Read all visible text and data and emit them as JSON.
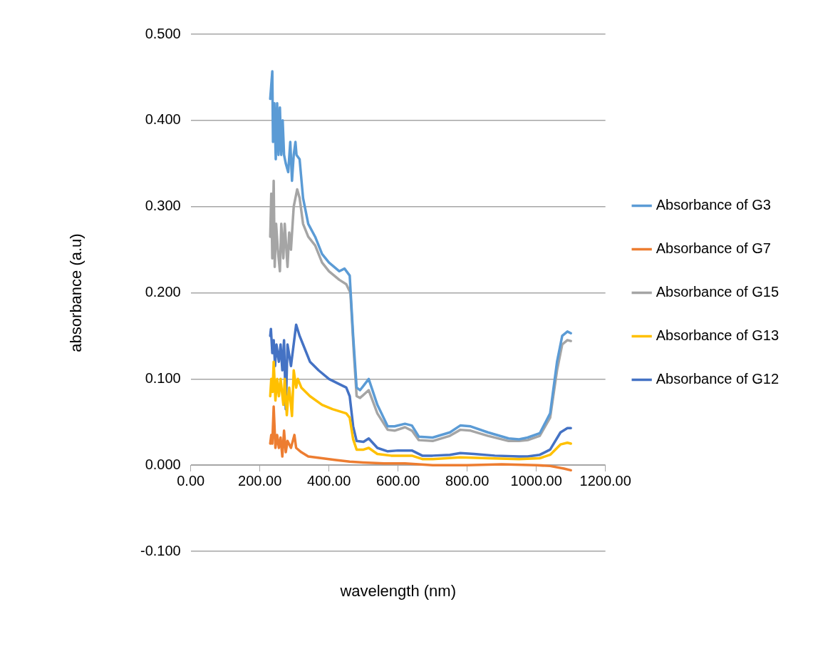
{
  "chart_data": {
    "type": "line",
    "xlabel": "wavelength (nm)",
    "ylabel": "absorbance (a.u)",
    "xlim": [
      0,
      1200
    ],
    "xticks": [
      {
        "value": 0,
        "label": "0.00"
      },
      {
        "value": 200,
        "label": "200.00"
      },
      {
        "value": 400,
        "label": "400.00"
      },
      {
        "value": 600,
        "label": "600.00"
      },
      {
        "value": 800,
        "label": "800.00"
      },
      {
        "value": 1000,
        "label": "1000.00"
      },
      {
        "value": 1200,
        "label": "1200.00"
      }
    ],
    "ylim": [
      -0.1,
      0.5
    ],
    "yticks": [
      {
        "value": -0.1,
        "label": "-0.100"
      },
      {
        "value": 0,
        "label": "0.000"
      },
      {
        "value": 0.1,
        "label": "0.100"
      },
      {
        "value": 0.2,
        "label": "0.200"
      },
      {
        "value": 0.3,
        "label": "0.300"
      },
      {
        "value": 0.4,
        "label": "0.400"
      },
      {
        "value": 0.5,
        "label": "0.500"
      }
    ],
    "grid": "y",
    "legend": "right",
    "marker": "none",
    "line_style": "solid",
    "series": [
      {
        "name": "Absorbance of G3",
        "color": "#5b9bd5",
        "x": [
          230,
          236,
          238,
          242,
          246,
          250,
          254,
          258,
          262,
          266,
          270,
          275,
          282,
          288,
          293,
          298,
          303,
          306,
          315,
          325,
          340,
          360,
          380,
          400,
          430,
          445,
          460,
          470,
          480,
          490,
          515,
          540,
          570,
          590,
          620,
          640,
          660,
          700,
          750,
          780,
          810,
          860,
          920,
          950,
          975,
          1010,
          1040,
          1060,
          1075,
          1090,
          1100
        ],
        "values": [
          0.425,
          0.457,
          0.375,
          0.42,
          0.355,
          0.42,
          0.36,
          0.415,
          0.36,
          0.4,
          0.36,
          0.35,
          0.34,
          0.375,
          0.33,
          0.36,
          0.375,
          0.36,
          0.355,
          0.31,
          0.28,
          0.265,
          0.245,
          0.235,
          0.225,
          0.228,
          0.22,
          0.15,
          0.09,
          0.087,
          0.1,
          0.07,
          0.045,
          0.045,
          0.048,
          0.046,
          0.033,
          0.032,
          0.038,
          0.046,
          0.045,
          0.038,
          0.031,
          0.03,
          0.032,
          0.037,
          0.06,
          0.12,
          0.15,
          0.155,
          0.153
        ]
      },
      {
        "name": "Absorbance of G7",
        "color": "#ed7d31",
        "x": [
          230,
          233,
          236,
          240,
          245,
          250,
          255,
          260,
          265,
          270,
          275,
          280,
          290,
          300,
          305,
          320,
          340,
          380,
          420,
          460,
          500,
          560,
          620,
          660,
          700,
          800,
          900,
          1000,
          1040,
          1080,
          1100
        ],
        "values": [
          0.025,
          0.035,
          0.025,
          0.068,
          0.02,
          0.035,
          0.02,
          0.032,
          0.01,
          0.04,
          0.015,
          0.028,
          0.02,
          0.035,
          0.02,
          0.015,
          0.01,
          0.008,
          0.006,
          0.004,
          0.003,
          0.002,
          0.002,
          0.001,
          0,
          0,
          0.001,
          0,
          -0.001,
          -0.004,
          -0.006
        ]
      },
      {
        "name": "Absorbance of G15",
        "color": "#a5a5a5",
        "x": [
          230,
          233,
          236,
          240,
          243,
          247,
          252,
          258,
          262,
          268,
          272,
          280,
          285,
          290,
          298,
          308,
          315,
          325,
          340,
          360,
          380,
          400,
          430,
          450,
          462,
          472,
          480,
          490,
          515,
          540,
          570,
          590,
          620,
          640,
          660,
          700,
          750,
          780,
          810,
          860,
          920,
          950,
          975,
          1010,
          1040,
          1060,
          1075,
          1090,
          1100
        ],
        "values": [
          0.265,
          0.315,
          0.24,
          0.33,
          0.23,
          0.28,
          0.25,
          0.225,
          0.28,
          0.24,
          0.28,
          0.23,
          0.27,
          0.25,
          0.3,
          0.32,
          0.31,
          0.28,
          0.265,
          0.255,
          0.235,
          0.225,
          0.215,
          0.21,
          0.2,
          0.13,
          0.08,
          0.078,
          0.087,
          0.06,
          0.041,
          0.04,
          0.044,
          0.04,
          0.029,
          0.028,
          0.034,
          0.041,
          0.04,
          0.034,
          0.028,
          0.028,
          0.029,
          0.034,
          0.055,
          0.11,
          0.14,
          0.145,
          0.144
        ]
      },
      {
        "name": "Absorbance of G13",
        "color": "#ffc000",
        "x": [
          230,
          233,
          237,
          240,
          245,
          250,
          255,
          260,
          268,
          272,
          278,
          282,
          285,
          293,
          298,
          305,
          310,
          320,
          345,
          380,
          410,
          450,
          460,
          470,
          480,
          500,
          515,
          540,
          580,
          640,
          670,
          700,
          780,
          860,
          950,
          1010,
          1040,
          1070,
          1090,
          1100
        ],
        "values": [
          0.08,
          0.1,
          0.085,
          0.12,
          0.075,
          0.1,
          0.08,
          0.1,
          0.07,
          0.1,
          0.058,
          0.08,
          0.09,
          0.057,
          0.11,
          0.09,
          0.1,
          0.09,
          0.08,
          0.07,
          0.065,
          0.06,
          0.055,
          0.03,
          0.018,
          0.018,
          0.02,
          0.013,
          0.011,
          0.011,
          0.007,
          0.007,
          0.009,
          0.008,
          0.007,
          0.008,
          0.012,
          0.024,
          0.026,
          0.025
        ]
      },
      {
        "name": "Absorbance of G12",
        "color": "#4472c4",
        "x": [
          230,
          232,
          236,
          240,
          244,
          248,
          255,
          260,
          265,
          270,
          275,
          280,
          290,
          305,
          315,
          325,
          345,
          370,
          400,
          430,
          450,
          460,
          470,
          480,
          500,
          515,
          540,
          570,
          600,
          640,
          670,
          700,
          750,
          780,
          820,
          880,
          950,
          975,
          1010,
          1040,
          1070,
          1090,
          1100
        ],
        "values": [
          0.15,
          0.158,
          0.13,
          0.145,
          0.115,
          0.14,
          0.12,
          0.14,
          0.11,
          0.145,
          0.065,
          0.14,
          0.115,
          0.163,
          0.15,
          0.14,
          0.12,
          0.11,
          0.1,
          0.094,
          0.09,
          0.08,
          0.045,
          0.028,
          0.027,
          0.031,
          0.02,
          0.016,
          0.017,
          0.017,
          0.011,
          0.011,
          0.012,
          0.014,
          0.013,
          0.011,
          0.01,
          0.01,
          0.012,
          0.018,
          0.038,
          0.043,
          0.043
        ]
      }
    ]
  }
}
